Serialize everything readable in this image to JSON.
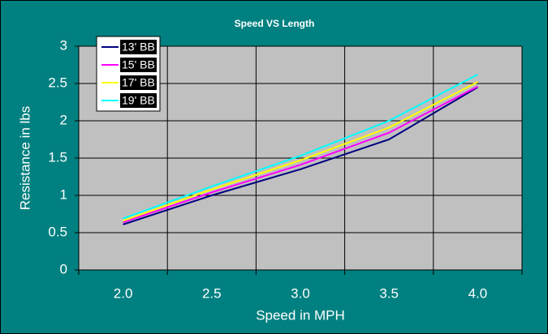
{
  "chart_data": {
    "type": "line",
    "title": "Speed VS Length",
    "x_label": "Speed in MPH",
    "y_label": "Resistance in lbs",
    "categories": [
      "2.0",
      "2.5",
      "3.0",
      "3.5",
      "4.0"
    ],
    "series": [
      {
        "name": "13' BB",
        "color": "#000080",
        "values": [
          0.61,
          1.0,
          1.35,
          1.75,
          2.45
        ]
      },
      {
        "name": "15' BB",
        "color": "#ff00ff",
        "values": [
          0.64,
          1.04,
          1.41,
          1.84,
          2.46
        ]
      },
      {
        "name": "17' BB",
        "color": "#ffff00",
        "values": [
          0.66,
          1.08,
          1.47,
          1.91,
          2.52
        ]
      },
      {
        "name": "19' BB",
        "color": "#00ffff",
        "values": [
          0.69,
          1.12,
          1.53,
          2.0,
          2.62
        ]
      }
    ],
    "ylim": [
      0,
      3
    ],
    "yticks": [
      0,
      0.5,
      1,
      1.5,
      2,
      2.5,
      3
    ],
    "grid": true
  }
}
